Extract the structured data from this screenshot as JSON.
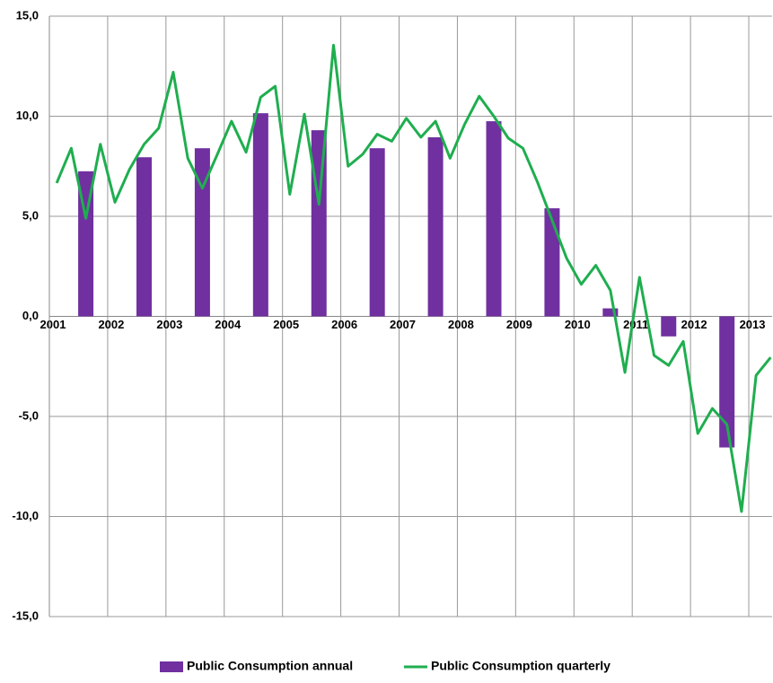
{
  "chart_data": {
    "type": "bar+line",
    "xlim": [
      2001,
      2013.4
    ],
    "xticks": [
      2001,
      2002,
      2003,
      2004,
      2005,
      2006,
      2007,
      2008,
      2009,
      2010,
      2011,
      2012,
      2013
    ],
    "ylim": [
      -15,
      15
    ],
    "yticks": [
      {
        "value": 15,
        "label": "15,0"
      },
      {
        "value": 10,
        "label": "10,0"
      },
      {
        "value": 5,
        "label": "5,0"
      },
      {
        "value": 0,
        "label": "0,0"
      },
      {
        "value": -5,
        "label": "-5,0"
      },
      {
        "value": -10,
        "label": "-10,0"
      },
      {
        "value": -15,
        "label": "-15,0"
      }
    ],
    "grid": true,
    "legend": "bottom",
    "series": [
      {
        "name": "Public Consumption annual",
        "type": "bar",
        "color": "#7030a0",
        "x": [
          2001.625,
          2002.625,
          2003.625,
          2004.625,
          2005.625,
          2006.625,
          2007.625,
          2008.625,
          2009.625,
          2010.625,
          2011.625,
          2012.625
        ],
        "values": [
          7.25,
          7.95,
          8.4,
          10.15,
          9.3,
          8.4,
          8.95,
          9.75,
          5.4,
          0.4,
          -1.0,
          -6.55
        ]
      },
      {
        "name": "Public Consumption quarterly",
        "type": "line",
        "color": "#1fae4f",
        "x": [
          2001.125,
          2001.375,
          2001.625,
          2001.875,
          2002.125,
          2002.375,
          2002.625,
          2002.875,
          2003.125,
          2003.375,
          2003.625,
          2003.875,
          2004.125,
          2004.375,
          2004.625,
          2004.875,
          2005.125,
          2005.375,
          2005.625,
          2005.875,
          2006.125,
          2006.375,
          2006.625,
          2006.875,
          2007.125,
          2007.375,
          2007.625,
          2007.875,
          2008.125,
          2008.375,
          2008.625,
          2008.875,
          2009.125,
          2009.375,
          2009.625,
          2009.875,
          2010.125,
          2010.375,
          2010.625,
          2010.875,
          2011.125,
          2011.375,
          2011.625,
          2011.875,
          2012.125,
          2012.375,
          2012.625,
          2012.875,
          2013.125,
          2013.375
        ],
        "values": [
          6.66,
          8.4,
          4.9,
          8.6,
          5.7,
          7.35,
          8.6,
          9.4,
          12.2,
          7.9,
          6.4,
          8.05,
          9.75,
          8.2,
          10.95,
          11.5,
          6.1,
          10.1,
          5.6,
          13.55,
          7.5,
          8.1,
          9.1,
          8.75,
          9.9,
          8.95,
          9.75,
          7.9,
          9.6,
          11.0,
          10.0,
          8.9,
          8.4,
          6.7,
          4.8,
          2.9,
          1.6,
          2.55,
          1.3,
          -2.8,
          1.95,
          -1.95,
          -2.45,
          -1.25,
          -5.85,
          -4.6,
          -5.4,
          -9.75,
          -2.95,
          -2.05
        ]
      }
    ]
  }
}
